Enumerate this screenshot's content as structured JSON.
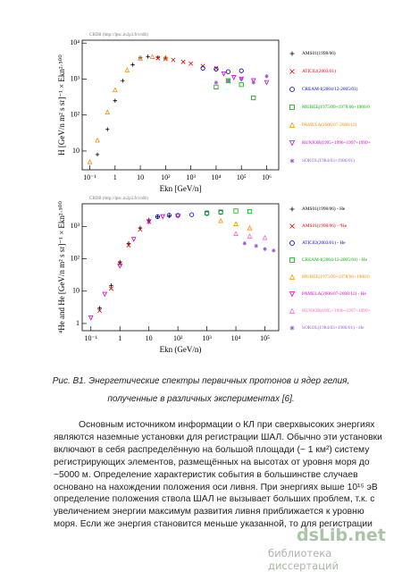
{
  "chart_data": [
    {
      "type": "scatter",
      "note": "CRDB (http://lpsc.in2p3.fr/crdb)",
      "y_label": "H  [GeV/n m² s sr]⁻¹ × Ekn²·⁵⁰⁰",
      "x_label": "Ekn [GeV/n]",
      "log_x": true,
      "log_y": true,
      "xlim": [
        0.05,
        3000000
      ],
      "ylim": [
        3,
        12000
      ],
      "xticks": [
        {
          "value": 0.1,
          "label": "10⁻¹"
        },
        1,
        10,
        {
          "value": 100,
          "label": "10²"
        },
        {
          "value": 1000,
          "label": "10³"
        },
        {
          "value": 10000,
          "label": "10⁴"
        },
        {
          "value": 100000,
          "label": "10⁵"
        },
        {
          "value": 1000000,
          "label": "10⁶"
        }
      ],
      "yticks": [
        10,
        {
          "value": 100,
          "label": "10²"
        },
        {
          "value": 1000,
          "label": "10³"
        },
        {
          "value": 10000,
          "label": "10⁴"
        }
      ],
      "series": [
        {
          "name": "AMS01(1998/06)",
          "color": "#000000",
          "marker": "plus",
          "x": [
            0.2,
            0.5,
            1,
            2,
            5,
            10,
            20,
            50,
            100
          ],
          "values": [
            8,
            40,
            250,
            900,
            2500,
            4000,
            4200,
            4000,
            3800
          ]
        },
        {
          "name": "ATIC02(2003/01)",
          "color": "#e00000",
          "marker": "cross",
          "x": [
            50,
            100,
            200,
            500,
            1000,
            3000,
            10000
          ],
          "values": [
            3800,
            3600,
            3400,
            3000,
            2700,
            2300,
            2000
          ]
        },
        {
          "name": "CREAM-I(2004/12-2005/01)",
          "color": "#0000d0",
          "marker": "circle",
          "x": [
            3000,
            10000,
            30000,
            100000
          ],
          "values": [
            2000,
            1900,
            1600,
            1700
          ]
        },
        {
          "name": "MUBEE(1975/09+1978/06+1986/0",
          "color": "#00b000",
          "marker": "square",
          "x": [
            10000,
            30000,
            100000,
            300000
          ],
          "values": [
            600,
            900,
            700,
            300
          ]
        },
        {
          "name": "PAMELA(2006/07-2008/12)",
          "color": "#ff8c00",
          "marker": "triangle",
          "x": [
            0.1,
            0.2,
            0.5,
            1,
            3,
            10,
            30,
            100
          ],
          "values": [
            5,
            20,
            120,
            500,
            1800,
            3800,
            4200,
            4000
          ]
        },
        {
          "name": "RUNJOB(1995+1996+1997+1999+",
          "color": "#d000d0",
          "marker": "down",
          "x": [
            20000,
            50000,
            100000,
            300000,
            1000000
          ],
          "values": [
            1400,
            1100,
            1000,
            900,
            800
          ]
        },
        {
          "name": "SOKOL(1984/03+1986/01)",
          "color": "#9b59d0",
          "marker": "star",
          "x": [
            10000,
            30000,
            100000,
            300000,
            1000000
          ],
          "values": [
            800,
            900,
            1000,
            800,
            1200
          ]
        }
      ]
    },
    {
      "type": "scatter",
      "note": "CRDB (http://lpsc.in2p3.fr/crdb)",
      "y_label": "⁴He and He  [GeV/n m² s sr]⁻¹ × Ekn²·⁵⁰⁰",
      "x_label": "Ekn (GeV/n)",
      "log_x": true,
      "log_y": true,
      "xlim": [
        0.05,
        300000
      ],
      "ylim": [
        0.6,
        5000
      ],
      "xticks": [
        {
          "value": 0.1,
          "label": "10⁻¹"
        },
        1,
        10,
        {
          "value": 100,
          "label": "10²"
        },
        {
          "value": 1000,
          "label": "10³"
        },
        {
          "value": 10000,
          "label": "10⁴"
        },
        {
          "value": 100000,
          "label": "10⁵"
        }
      ],
      "yticks": [
        1,
        10,
        {
          "value": 100,
          "label": "10²"
        },
        {
          "value": 1000,
          "label": "10³"
        }
      ],
      "series": [
        {
          "name": "AMS01(1998/06) - He",
          "color": "#000000",
          "marker": "plus",
          "x": [
            0.2,
            0.5,
            1,
            2,
            5,
            10,
            20,
            50
          ],
          "values": [
            3,
            15,
            80,
            300,
            900,
            1600,
            2000,
            2100
          ]
        },
        {
          "name": "AMS01(1998/06) - ⁴He",
          "color": "#e00000",
          "marker": "cross",
          "x": [
            0.2,
            0.5,
            1,
            2,
            5,
            10
          ],
          "values": [
            2.5,
            12,
            70,
            260,
            800,
            1400
          ]
        },
        {
          "name": "ATIC02(2003/01) - He",
          "color": "#0000d0",
          "marker": "circle",
          "x": [
            20,
            50,
            100,
            300,
            1000,
            3000
          ],
          "values": [
            2000,
            2200,
            2200,
            2300,
            2500,
            2700
          ]
        },
        {
          "name": "CREAM-I(2004/12-2005/01) - He",
          "color": "#00b000",
          "marker": "square",
          "x": [
            1000,
            3000,
            10000,
            30000
          ],
          "values": [
            2600,
            2800,
            3000,
            2900
          ]
        },
        {
          "name": "MUBEE(1975/09+1978/06+1986/0",
          "color": "#ff8c00",
          "marker": "triangle",
          "x": [
            3000,
            10000,
            30000
          ],
          "values": [
            1500,
            1200,
            900
          ]
        },
        {
          "name": "PAMELA(2006/07-2008/12) - He",
          "color": "#d000d0",
          "marker": "down",
          "x": [
            0.1,
            0.3,
            1,
            3,
            10,
            30,
            100
          ],
          "values": [
            1.5,
            8,
            60,
            400,
            1400,
            2000,
            2100
          ]
        },
        {
          "name": "RUNJOB(1995+1996+1997+1999+",
          "color": "#ff66cc",
          "marker": "triangle",
          "x": [
            10000,
            30000,
            100000
          ],
          "values": [
            600,
            500,
            450
          ]
        },
        {
          "name": "SOKOL(1984/03+1986/01) - He",
          "color": "#9b59d0",
          "marker": "star",
          "x": [
            20000,
            50000,
            100000,
            200000
          ],
          "values": [
            300,
            250,
            200,
            180
          ]
        }
      ]
    }
  ],
  "caption": [
    "Рис. В1. Энергетические спектры первичных протонов и ядер гелия,",
    "полученные в различных экспериментах [6]."
  ],
  "paragraph": [
    "Основным источником информации о КЛ при сверхвысоких энергиях",
    "являются наземные установки для регистрации ШАЛ. Обычно эти установки",
    "включают в себя распределённую на большой площади (~ 1 км²) систему",
    "регистрирующих элементов, размещённых на высотах от уровня моря до",
    "~5000 м. Определение характеристик события в большинстве случаев",
    "основано на нахождении положения оси ливня. При энергиях выше 10¹⁵ эВ",
    "определение положения ствола ШАЛ не вызывает больших проблем, т.к. с",
    "увеличением энергии максимум развития ливня приближается к уровню",
    "моря. Если же энергия становится меньше указанной, то для регистрации"
  ],
  "watermark": {
    "brand": "dsLib.net",
    "subtitle": "библиотека диссертаций"
  }
}
